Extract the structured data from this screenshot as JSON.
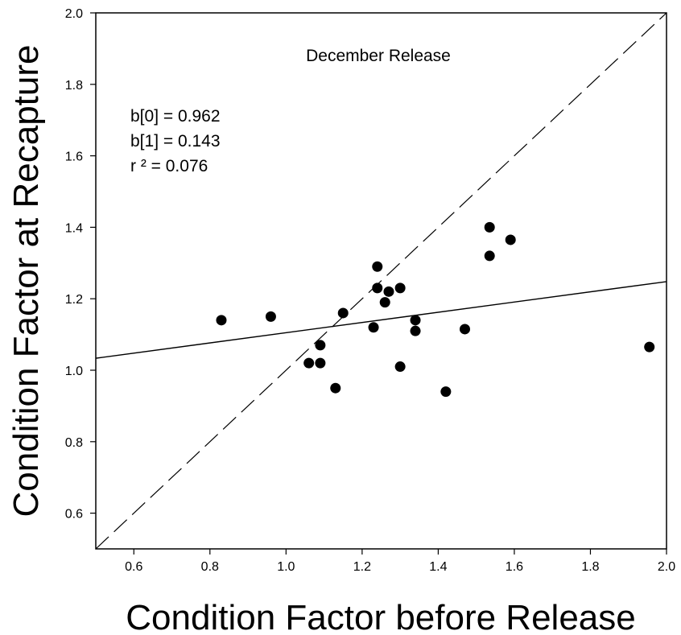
{
  "chart_data": {
    "type": "scatter",
    "title": "December Release",
    "xlabel": "Condition Factor before Release",
    "ylabel": "Condition Factor at Recapture",
    "xlim": [
      0.5,
      2.0
    ],
    "ylim": [
      0.5,
      2.0
    ],
    "x_ticks": [
      "0.6",
      "0.8",
      "1.0",
      "1.2",
      "1.4",
      "1.6",
      "1.8",
      "2.0"
    ],
    "y_ticks": [
      "0.6",
      "0.8",
      "1.0",
      "1.2",
      "1.4",
      "1.6",
      "1.8",
      "2.0"
    ],
    "x_tick_values": [
      0.6,
      0.8,
      1.0,
      1.2,
      1.4,
      1.6,
      1.8,
      2.0
    ],
    "y_tick_values": [
      0.6,
      0.8,
      1.0,
      1.2,
      1.4,
      1.6,
      1.8,
      2.0
    ],
    "grid": false,
    "annotations": [
      "b[0] = 0.962",
      "b[1] = 0.143",
      "r ² = 0.076"
    ],
    "points": [
      {
        "x": 0.83,
        "y": 1.14
      },
      {
        "x": 0.96,
        "y": 1.15
      },
      {
        "x": 1.06,
        "y": 1.02
      },
      {
        "x": 1.09,
        "y": 1.07
      },
      {
        "x": 1.09,
        "y": 1.02
      },
      {
        "x": 1.13,
        "y": 0.95
      },
      {
        "x": 1.15,
        "y": 1.16
      },
      {
        "x": 1.23,
        "y": 1.12
      },
      {
        "x": 1.24,
        "y": 1.29
      },
      {
        "x": 1.24,
        "y": 1.23
      },
      {
        "x": 1.26,
        "y": 1.19
      },
      {
        "x": 1.27,
        "y": 1.22
      },
      {
        "x": 1.3,
        "y": 1.23
      },
      {
        "x": 1.3,
        "y": 1.01
      },
      {
        "x": 1.34,
        "y": 1.14
      },
      {
        "x": 1.34,
        "y": 1.11
      },
      {
        "x": 1.42,
        "y": 0.94
      },
      {
        "x": 1.47,
        "y": 1.115
      },
      {
        "x": 1.535,
        "y": 1.4
      },
      {
        "x": 1.535,
        "y": 1.32
      },
      {
        "x": 1.59,
        "y": 1.365
      },
      {
        "x": 1.955,
        "y": 1.065
      }
    ],
    "regression_line": {
      "intercept": 0.962,
      "slope": 0.143,
      "style": "solid"
    },
    "reference_line": {
      "description": "1:1",
      "style": "dashed"
    }
  }
}
